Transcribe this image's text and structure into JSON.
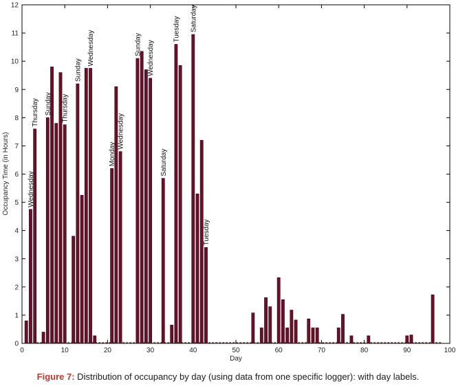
{
  "chart_data": {
    "type": "bar",
    "xlabel": "Day",
    "ylabel": "Occupancy Time (in Hours)",
    "xlim": [
      0,
      100
    ],
    "ylim": [
      0,
      12
    ],
    "xticks": [
      0,
      10,
      20,
      30,
      40,
      50,
      60,
      70,
      80,
      90,
      100
    ],
    "yticks": [
      0,
      1,
      2,
      3,
      4,
      5,
      6,
      7,
      8,
      9,
      10,
      11,
      12
    ],
    "grid": false,
    "legend": "none",
    "bar_color": "#6b0f2a",
    "bar_edge_color": "#2a0a14",
    "baseline_dash_color": "#5a2a1a",
    "x": [
      1,
      2,
      3,
      5,
      6,
      7,
      8,
      9,
      10,
      12,
      13,
      14,
      15,
      16,
      17,
      21,
      22,
      23,
      27,
      28,
      29,
      30,
      33,
      35,
      36,
      37,
      40,
      41,
      42,
      43,
      54,
      56,
      57,
      58,
      60,
      61,
      62,
      63,
      64,
      67,
      68,
      69,
      74,
      75,
      77,
      81,
      90,
      91,
      96
    ],
    "values": [
      0.8,
      4.75,
      7.6,
      0.4,
      8.0,
      9.8,
      7.8,
      9.6,
      7.75,
      3.8,
      9.2,
      5.25,
      9.75,
      9.75,
      0.27,
      6.2,
      9.1,
      6.8,
      10.1,
      10.35,
      9.7,
      9.4,
      5.85,
      0.65,
      10.6,
      9.85,
      10.95,
      5.3,
      7.2,
      3.4,
      1.08,
      0.55,
      1.62,
      1.3,
      2.33,
      1.55,
      0.55,
      1.18,
      0.83,
      0.87,
      0.55,
      0.55,
      0.55,
      1.03,
      0.27,
      0.27,
      0.27,
      0.3,
      1.72
    ],
    "annotations": [
      {
        "x": 2,
        "text": "Wednesday"
      },
      {
        "x": 3,
        "text": "Thursday"
      },
      {
        "x": 6,
        "text": "Sunday"
      },
      {
        "x": 10,
        "text": "Thursday"
      },
      {
        "x": 13,
        "text": "Sunday"
      },
      {
        "x": 16,
        "text": "Wednesday"
      },
      {
        "x": 21,
        "text": "Monday"
      },
      {
        "x": 23,
        "text": "Wednesday"
      },
      {
        "x": 27,
        "text": "Sunday"
      },
      {
        "x": 30,
        "text": "Wednesday"
      },
      {
        "x": 33,
        "text": "Saturday"
      },
      {
        "x": 36,
        "text": "Tuesday"
      },
      {
        "x": 40,
        "text": "Saturday"
      },
      {
        "x": 43,
        "text": "Tuesday"
      }
    ]
  },
  "caption": {
    "label": "Figure 7:",
    "text": " Distribution of occupancy by day (using data from one specific logger): with day labels."
  }
}
